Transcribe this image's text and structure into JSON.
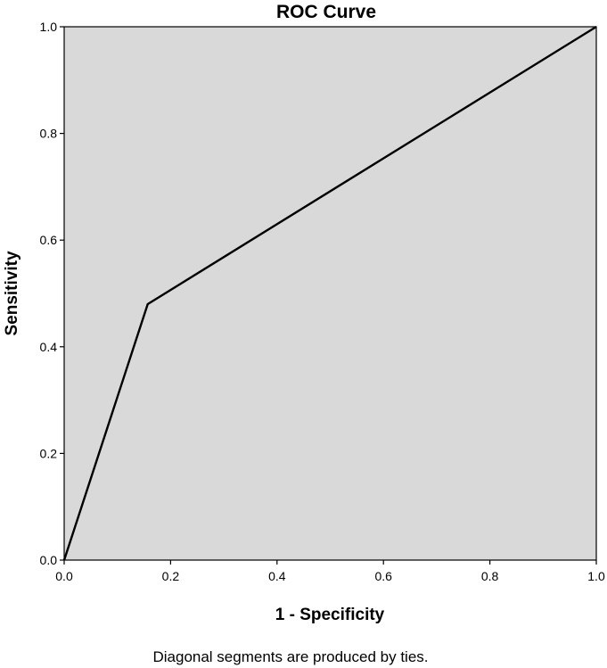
{
  "chart_data": {
    "type": "line",
    "title": "ROC Curve",
    "xlabel": "1 - Specificity",
    "ylabel": "Sensitivity",
    "xlim": [
      0,
      1
    ],
    "ylim": [
      0,
      1
    ],
    "x_ticks": [
      "0.0",
      "0.2",
      "0.4",
      "0.6",
      "0.8",
      "1.0"
    ],
    "y_ticks": [
      "0.0",
      "0.2",
      "0.4",
      "0.6",
      "0.8",
      "1.0"
    ],
    "grid": false,
    "legend": "none",
    "plot_background": "#d9d9d9",
    "line_color": "#000000",
    "series": [
      {
        "x": [
          0.0,
          0.157,
          1.0
        ],
        "y": [
          0.0,
          0.48,
          1.0
        ]
      }
    ],
    "footnote": "Diagonal segments are produced by ties."
  }
}
